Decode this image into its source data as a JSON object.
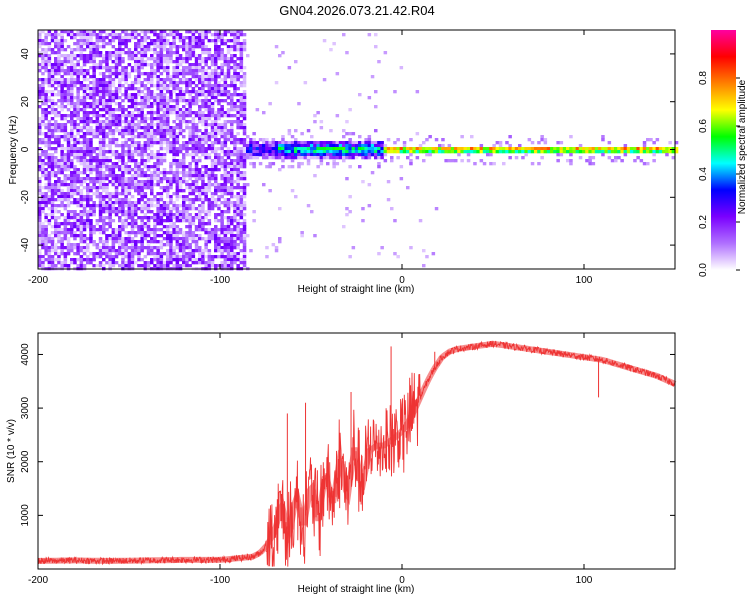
{
  "figure": {
    "title": "GN04.2026.073.21.42.R04"
  },
  "chart_data": [
    {
      "type": "heatmap",
      "name": "spectrogram",
      "title": "GN04.2026.073.21.42.R04",
      "xlabel": "Height of straight line (km)",
      "ylabel": "Frequency (Hz)",
      "xlim": [
        -200,
        150
      ],
      "ylim": [
        -50,
        50
      ],
      "x_ticks": [
        -200,
        -100,
        0,
        100
      ],
      "y_ticks": [
        -40,
        -20,
        0,
        20,
        40
      ],
      "colorbar": {
        "label": "Normalized spectral amplitude",
        "range": [
          0,
          1
        ],
        "ticks": [
          0.0,
          0.2,
          0.4,
          0.6,
          0.8
        ],
        "tick_labels": [
          "0.0",
          "0.2",
          "0.4",
          "0.6",
          "0.8"
        ],
        "colors": [
          "#ffffff",
          "#b070ff",
          "#7a00ff",
          "#0000ff",
          "#00ffff",
          "#00ff00",
          "#ffff00",
          "#ff8000",
          "#ff0000",
          "#ff00a0"
        ]
      },
      "regions": [
        {
          "x_range": [
            -200,
            -86
          ],
          "description_value": "noise",
          "mean_amplitude": 0.12,
          "freq_spread": [
            -50,
            50
          ]
        },
        {
          "x_range": [
            -86,
            -70
          ],
          "mean_amplitude": 0.3,
          "freq_spread": [
            -4,
            4
          ]
        },
        {
          "x_range": [
            -70,
            -10
          ],
          "mean_amplitude": 0.5,
          "freq_spread": [
            -3,
            3
          ]
        },
        {
          "x_range": [
            -10,
            150
          ],
          "mean_amplitude": 0.85,
          "freq_spread": [
            -1,
            1
          ]
        }
      ]
    },
    {
      "type": "line",
      "name": "snr",
      "xlabel": "Height of straight line (km)",
      "ylabel": "SNR (10 * v/v)",
      "xlim": [
        -200,
        150
      ],
      "ylim": [
        0,
        4400
      ],
      "x_ticks": [
        -200,
        -100,
        0,
        100
      ],
      "y_ticks": [
        1000,
        2000,
        3000,
        4000
      ],
      "color": "#ee3333",
      "series": [
        {
          "name": "SNR",
          "x": [
            -200,
            -180,
            -160,
            -140,
            -120,
            -100,
            -90,
            -82,
            -78,
            -74,
            -70,
            -66,
            -62,
            -58,
            -54,
            -50,
            -46,
            -42,
            -38,
            -34,
            -30,
            -26,
            -22,
            -18,
            -14,
            -10,
            -6,
            -2,
            2,
            6,
            10,
            14,
            18,
            22,
            26,
            30,
            40,
            50,
            60,
            70,
            80,
            90,
            100,
            110,
            120,
            130,
            140,
            150
          ],
          "values": [
            150,
            160,
            150,
            160,
            170,
            170,
            200,
            230,
            300,
            450,
            700,
            1200,
            600,
            1400,
            800,
            1600,
            900,
            1800,
            1200,
            2100,
            1300,
            2300,
            1500,
            2200,
            2300,
            2300,
            2400,
            2500,
            2650,
            2900,
            3200,
            3500,
            3750,
            3950,
            4050,
            4100,
            4150,
            4200,
            4150,
            4100,
            4050,
            4000,
            3950,
            3900,
            3800,
            3700,
            3600,
            3450
          ]
        }
      ],
      "spikes": [
        {
          "x": -63,
          "y": 2900
        },
        {
          "x": -53,
          "y": 3100
        },
        {
          "x": -28,
          "y": 3300
        },
        {
          "x": -6,
          "y": 4150
        },
        {
          "x": 18,
          "y": 4050
        },
        {
          "x": 108,
          "y": 3200
        }
      ],
      "noise_amplitude": 60
    }
  ]
}
